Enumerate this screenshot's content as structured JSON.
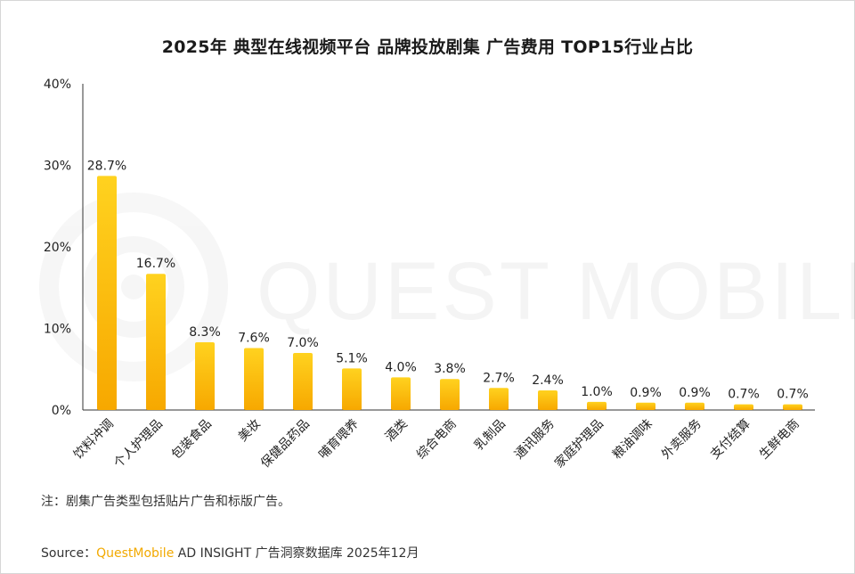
{
  "chart_data": {
    "type": "bar",
    "title": "2025年 典型在线视频平台 品牌投放剧集 广告费用  TOP15行业占比",
    "categories": [
      "饮料冲调",
      "个人护理品",
      "包装食品",
      "美妆",
      "保健品药品",
      "哺育喂养",
      "酒类",
      "综合电商",
      "乳制品",
      "通讯服务",
      "家庭护理品",
      "粮油调味",
      "外卖服务",
      "支付结算",
      "生鲜电商"
    ],
    "values": [
      28.7,
      16.7,
      8.3,
      7.6,
      7.0,
      5.1,
      4.0,
      3.8,
      2.7,
      2.4,
      1.0,
      0.9,
      0.9,
      0.7,
      0.7
    ],
    "value_labels": [
      "28.7%",
      "16.7%",
      "8.3%",
      "7.6%",
      "7.0%",
      "5.1%",
      "4.0%",
      "3.8%",
      "2.7%",
      "2.4%",
      "1.0%",
      "0.9%",
      "0.9%",
      "0.7%",
      "0.7%"
    ],
    "yticks": [
      0,
      10,
      20,
      30,
      40
    ],
    "ytick_labels": [
      "0%",
      "10%",
      "20%",
      "30%",
      "40%"
    ],
    "ylim": [
      0,
      40
    ],
    "xlabel": "",
    "ylabel": "",
    "grid": false,
    "bar_color_top": "#ffd21f",
    "bar_color_bottom": "#f7a800"
  },
  "watermark": "QUEST MOBILE",
  "note": "注：剧集广告类型包括贴片广告和标版广告。",
  "source": {
    "label": "Source：",
    "brand": "QuestMobile",
    "rest": " AD INSIGHT 广告洞察数据库 2025年12月"
  }
}
